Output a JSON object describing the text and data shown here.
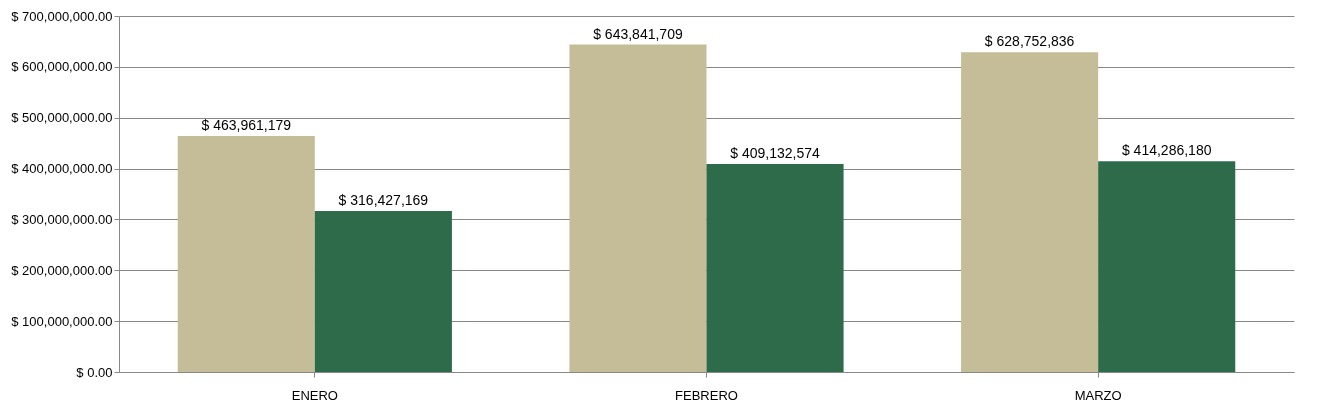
{
  "chart_data": {
    "type": "bar",
    "categories": [
      "ENERO",
      "FEBRERO",
      "MARZO"
    ],
    "series": [
      {
        "color": "#c4bd97",
        "values": [
          463961179,
          643841709,
          628752836
        ],
        "value_labels": [
          "$ 463,961,179",
          "$ 643,841,709",
          "$ 628,752,836"
        ]
      },
      {
        "color": "#2e6b4b",
        "values": [
          316427169,
          409132574,
          414286180
        ],
        "value_labels": [
          "$ 316,427,169",
          "$ 409,132,574",
          "$ 414,286,180"
        ]
      }
    ],
    "ylim": [
      0,
      700000000
    ],
    "yticks": [
      {
        "value": 0,
        "label": "$ 0.00"
      },
      {
        "value": 100000000,
        "label": "$ 100,000,000.00"
      },
      {
        "value": 200000000,
        "label": "$ 200,000,000.00"
      },
      {
        "value": 300000000,
        "label": "$ 300,000,000.00"
      },
      {
        "value": 400000000,
        "label": "$ 400,000,000.00"
      },
      {
        "value": 500000000,
        "label": "$ 500,000,000.00"
      },
      {
        "value": 600000000,
        "label": "$ 600,000,000.00"
      },
      {
        "value": 700000000,
        "label": "$ 700,000,000.00"
      }
    ],
    "grid": "y",
    "legend": false
  }
}
